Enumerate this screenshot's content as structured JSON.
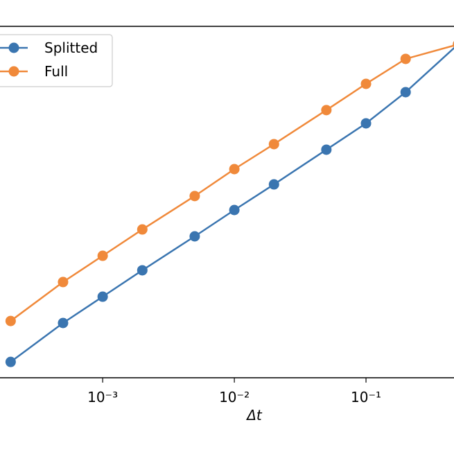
{
  "chart_data": {
    "type": "line",
    "xlabel": "Δt",
    "xlog": true,
    "ylog": true,
    "x": [
      0.0002,
      0.0005,
      0.001,
      0.002,
      0.005,
      0.01,
      0.02,
      0.05,
      0.1,
      0.2,
      0.5
    ],
    "series": [
      {
        "name": "Splitted",
        "color": "#3a75b0",
        "values": [
          1.34e-05,
          3.77e-05,
          7.59e-05,
          0.000153,
          0.000377,
          0.000759,
          0.0015,
          0.00377,
          0.00759,
          0.0174,
          0.0619
        ]
      },
      {
        "name": "Full",
        "color": "#f0893a",
        "values": [
          3.98e-05,
          0.000112,
          0.000225,
          0.000453,
          0.0011,
          0.00225,
          0.00437,
          0.0108,
          0.0217,
          0.0421,
          0.0619
        ]
      }
    ],
    "xlim": [
      0.000166,
      0.466
    ],
    "ylim": [
      8.8e-06,
      0.1
    ],
    "xticks": [
      {
        "value": 0.001,
        "label": "10⁻³"
      },
      {
        "value": 0.01,
        "label": "10⁻²"
      },
      {
        "value": 0.1,
        "label": "10⁻¹"
      }
    ],
    "legend": "upper left"
  }
}
